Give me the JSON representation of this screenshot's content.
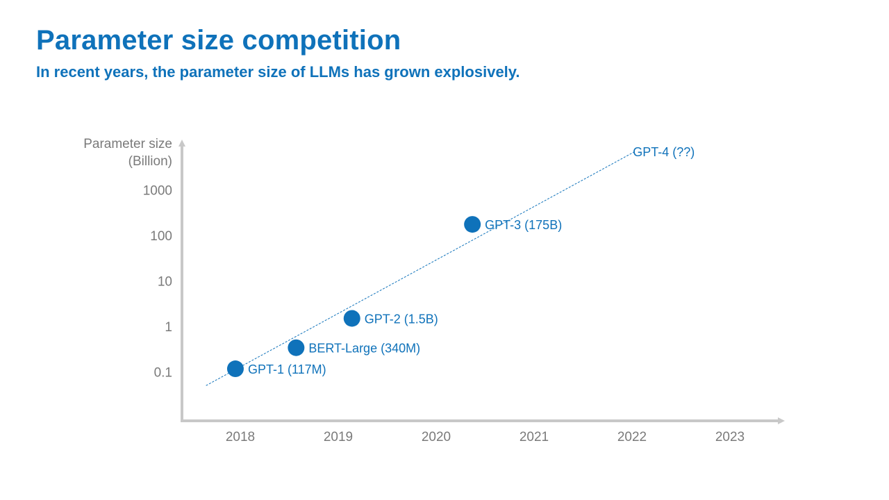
{
  "header": {
    "title": "Parameter size competition",
    "subtitle": "In recent years, the parameter size of LLMs has grown explosively."
  },
  "colors": {
    "accent": "#0f72ba",
    "axis": "#c8c8c8",
    "axis_text": "#7a7a7a"
  },
  "chart_data": {
    "type": "scatter",
    "ylabel_lines": [
      "Parameter size",
      "(Billion)"
    ],
    "xlabel": "",
    "y_scale": "log",
    "y_ticks": [
      {
        "value": 0.1,
        "label": "0.1"
      },
      {
        "value": 1,
        "label": "1"
      },
      {
        "value": 10,
        "label": "10"
      },
      {
        "value": 100,
        "label": "100"
      },
      {
        "value": 1000,
        "label": "1000"
      }
    ],
    "x_ticks": [
      "2018",
      "2019",
      "2020",
      "2021",
      "2022",
      "2023"
    ],
    "xlim": [
      2017.6,
      2023.4
    ],
    "points": [
      {
        "label": "GPT-1 (117M)",
        "x": 2017.95,
        "y": 0.117
      },
      {
        "label": "BERT-Large (340M)",
        "x": 2018.57,
        "y": 0.34
      },
      {
        "label": "GPT-2 (1.5B)",
        "x": 2019.14,
        "y": 1.5
      },
      {
        "label": "GPT-3 (175B)",
        "x": 2020.37,
        "y": 175
      }
    ],
    "trendline": {
      "style": "dashed",
      "from": {
        "x": 2017.65,
        "y": 0.05
      },
      "to": {
        "x": 2022.03,
        "y": 7000
      }
    },
    "annotations": [
      {
        "label": "GPT-4 (??)",
        "x": 2022.03,
        "y": 7000
      }
    ],
    "grid": false,
    "legend": "none"
  }
}
